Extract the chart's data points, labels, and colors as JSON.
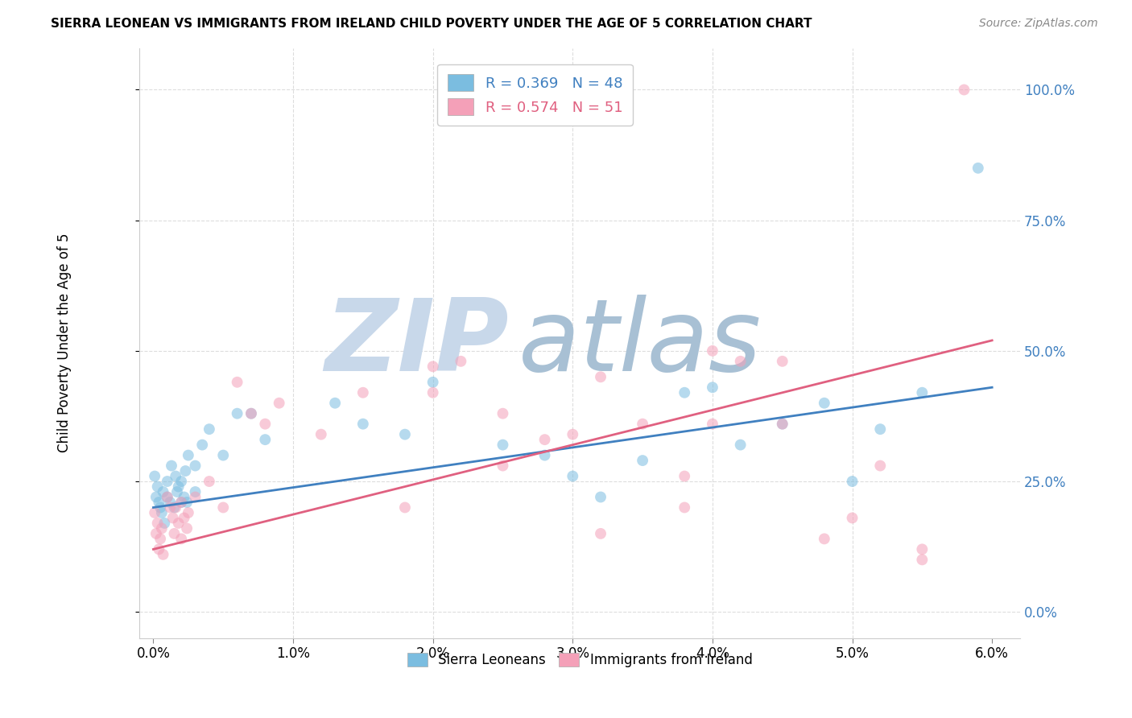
{
  "title": "SIERRA LEONEAN VS IMMIGRANTS FROM IRELAND CHILD POVERTY UNDER THE AGE OF 5 CORRELATION CHART",
  "source": "Source: ZipAtlas.com",
  "ylabel": "Child Poverty Under the Age of 5",
  "xlim": [
    -0.001,
    0.062
  ],
  "ylim": [
    -0.05,
    1.08
  ],
  "xticks": [
    0.0,
    0.01,
    0.02,
    0.03,
    0.04,
    0.05,
    0.06
  ],
  "xticklabels": [
    "0.0%",
    "1.0%",
    "2.0%",
    "3.0%",
    "4.0%",
    "5.0%",
    "6.0%"
  ],
  "yticks": [
    0.0,
    0.25,
    0.5,
    0.75,
    1.0
  ],
  "yticklabels": [
    "0.0%",
    "25.0%",
    "50.0%",
    "75.0%",
    "100.0%"
  ],
  "blue_R": 0.369,
  "blue_N": 48,
  "pink_R": 0.574,
  "pink_N": 51,
  "blue_color": "#7bbde0",
  "pink_color": "#f4a0b8",
  "blue_line_color": "#4080c0",
  "pink_line_color": "#e06080",
  "watermark_zip": "ZIP",
  "watermark_atlas": "atlas",
  "watermark_color_zip": "#c8d8e8",
  "watermark_color_atlas": "#b0c8d8",
  "legend_label_blue": "Sierra Leoneans",
  "legend_label_pink": "Immigrants from Ireland",
  "blue_scatter_x": [
    0.0001,
    0.0002,
    0.0003,
    0.0004,
    0.0005,
    0.0006,
    0.0007,
    0.0008,
    0.001,
    0.001,
    0.0012,
    0.0013,
    0.0015,
    0.0016,
    0.0017,
    0.0018,
    0.002,
    0.002,
    0.0022,
    0.0023,
    0.0024,
    0.0025,
    0.003,
    0.003,
    0.0035,
    0.004,
    0.005,
    0.006,
    0.007,
    0.008,
    0.013,
    0.015,
    0.018,
    0.02,
    0.025,
    0.028,
    0.03,
    0.032,
    0.035,
    0.038,
    0.04,
    0.042,
    0.045,
    0.048,
    0.05,
    0.052,
    0.055,
    0.059
  ],
  "blue_scatter_y": [
    0.26,
    0.22,
    0.24,
    0.21,
    0.2,
    0.19,
    0.23,
    0.17,
    0.25,
    0.22,
    0.21,
    0.28,
    0.2,
    0.26,
    0.23,
    0.24,
    0.21,
    0.25,
    0.22,
    0.27,
    0.21,
    0.3,
    0.23,
    0.28,
    0.32,
    0.35,
    0.3,
    0.38,
    0.38,
    0.33,
    0.4,
    0.36,
    0.34,
    0.44,
    0.32,
    0.3,
    0.26,
    0.22,
    0.29,
    0.42,
    0.43,
    0.32,
    0.36,
    0.4,
    0.25,
    0.35,
    0.42,
    0.85
  ],
  "pink_scatter_x": [
    0.0001,
    0.0002,
    0.0003,
    0.0004,
    0.0005,
    0.0006,
    0.0007,
    0.001,
    0.0012,
    0.0014,
    0.0015,
    0.0016,
    0.0018,
    0.002,
    0.002,
    0.0022,
    0.0024,
    0.0025,
    0.003,
    0.004,
    0.005,
    0.006,
    0.007,
    0.008,
    0.009,
    0.012,
    0.015,
    0.018,
    0.02,
    0.022,
    0.025,
    0.028,
    0.03,
    0.032,
    0.035,
    0.038,
    0.04,
    0.042,
    0.045,
    0.048,
    0.05,
    0.052,
    0.055,
    0.058,
    0.04,
    0.02,
    0.025,
    0.032,
    0.038,
    0.045,
    0.055
  ],
  "pink_scatter_y": [
    0.19,
    0.15,
    0.17,
    0.12,
    0.14,
    0.16,
    0.11,
    0.22,
    0.2,
    0.18,
    0.15,
    0.2,
    0.17,
    0.21,
    0.14,
    0.18,
    0.16,
    0.19,
    0.22,
    0.25,
    0.2,
    0.44,
    0.38,
    0.36,
    0.4,
    0.34,
    0.42,
    0.2,
    0.47,
    0.48,
    0.38,
    0.33,
    0.34,
    0.45,
    0.36,
    0.26,
    0.5,
    0.48,
    0.48,
    0.14,
    0.18,
    0.28,
    0.12,
    1.0,
    0.36,
    0.42,
    0.28,
    0.15,
    0.2,
    0.36,
    0.1
  ],
  "blue_line_x": [
    0.0,
    0.06
  ],
  "blue_line_y": [
    0.2,
    0.43
  ],
  "pink_line_x": [
    0.0,
    0.06
  ],
  "pink_line_y": [
    0.12,
    0.52
  ],
  "marker_size": 100,
  "marker_alpha": 0.55
}
